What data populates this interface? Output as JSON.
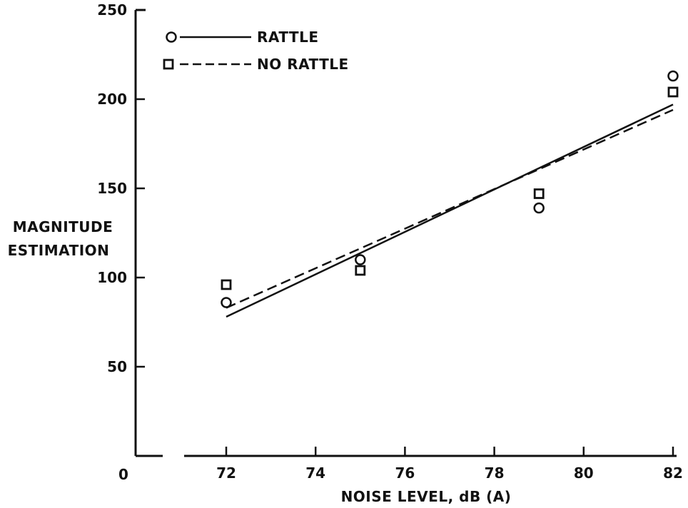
{
  "chart_data": {
    "type": "scatter",
    "title": "",
    "xlabel": "NOISE LEVEL, dB (A)",
    "ylabel_lines": [
      "MAGNITUDE",
      "ESTIMATION"
    ],
    "xlim": [
      72,
      82
    ],
    "ylim": [
      0,
      250
    ],
    "x_ticks": [
      72,
      74,
      76,
      78,
      80,
      82
    ],
    "y_ticks": [
      50,
      100,
      150,
      200,
      250
    ],
    "y_origin_label": "0",
    "legend_position": "top-left",
    "grid": false,
    "series": [
      {
        "name": "RATTLE",
        "marker": "circle",
        "line_style": "solid",
        "color": "#111111",
        "points": [
          [
            72,
            86
          ],
          [
            75,
            110
          ],
          [
            79,
            139
          ],
          [
            82,
            213
          ]
        ],
        "fit_line": [
          [
            72,
            78
          ],
          [
            82,
            197
          ]
        ]
      },
      {
        "name": "NO RATTLE",
        "marker": "square",
        "line_style": "dashed",
        "color": "#111111",
        "points": [
          [
            72,
            96
          ],
          [
            75,
            104
          ],
          [
            79,
            147
          ],
          [
            82,
            204
          ]
        ],
        "fit_line": [
          [
            72,
            83
          ],
          [
            82,
            194
          ]
        ]
      }
    ]
  }
}
